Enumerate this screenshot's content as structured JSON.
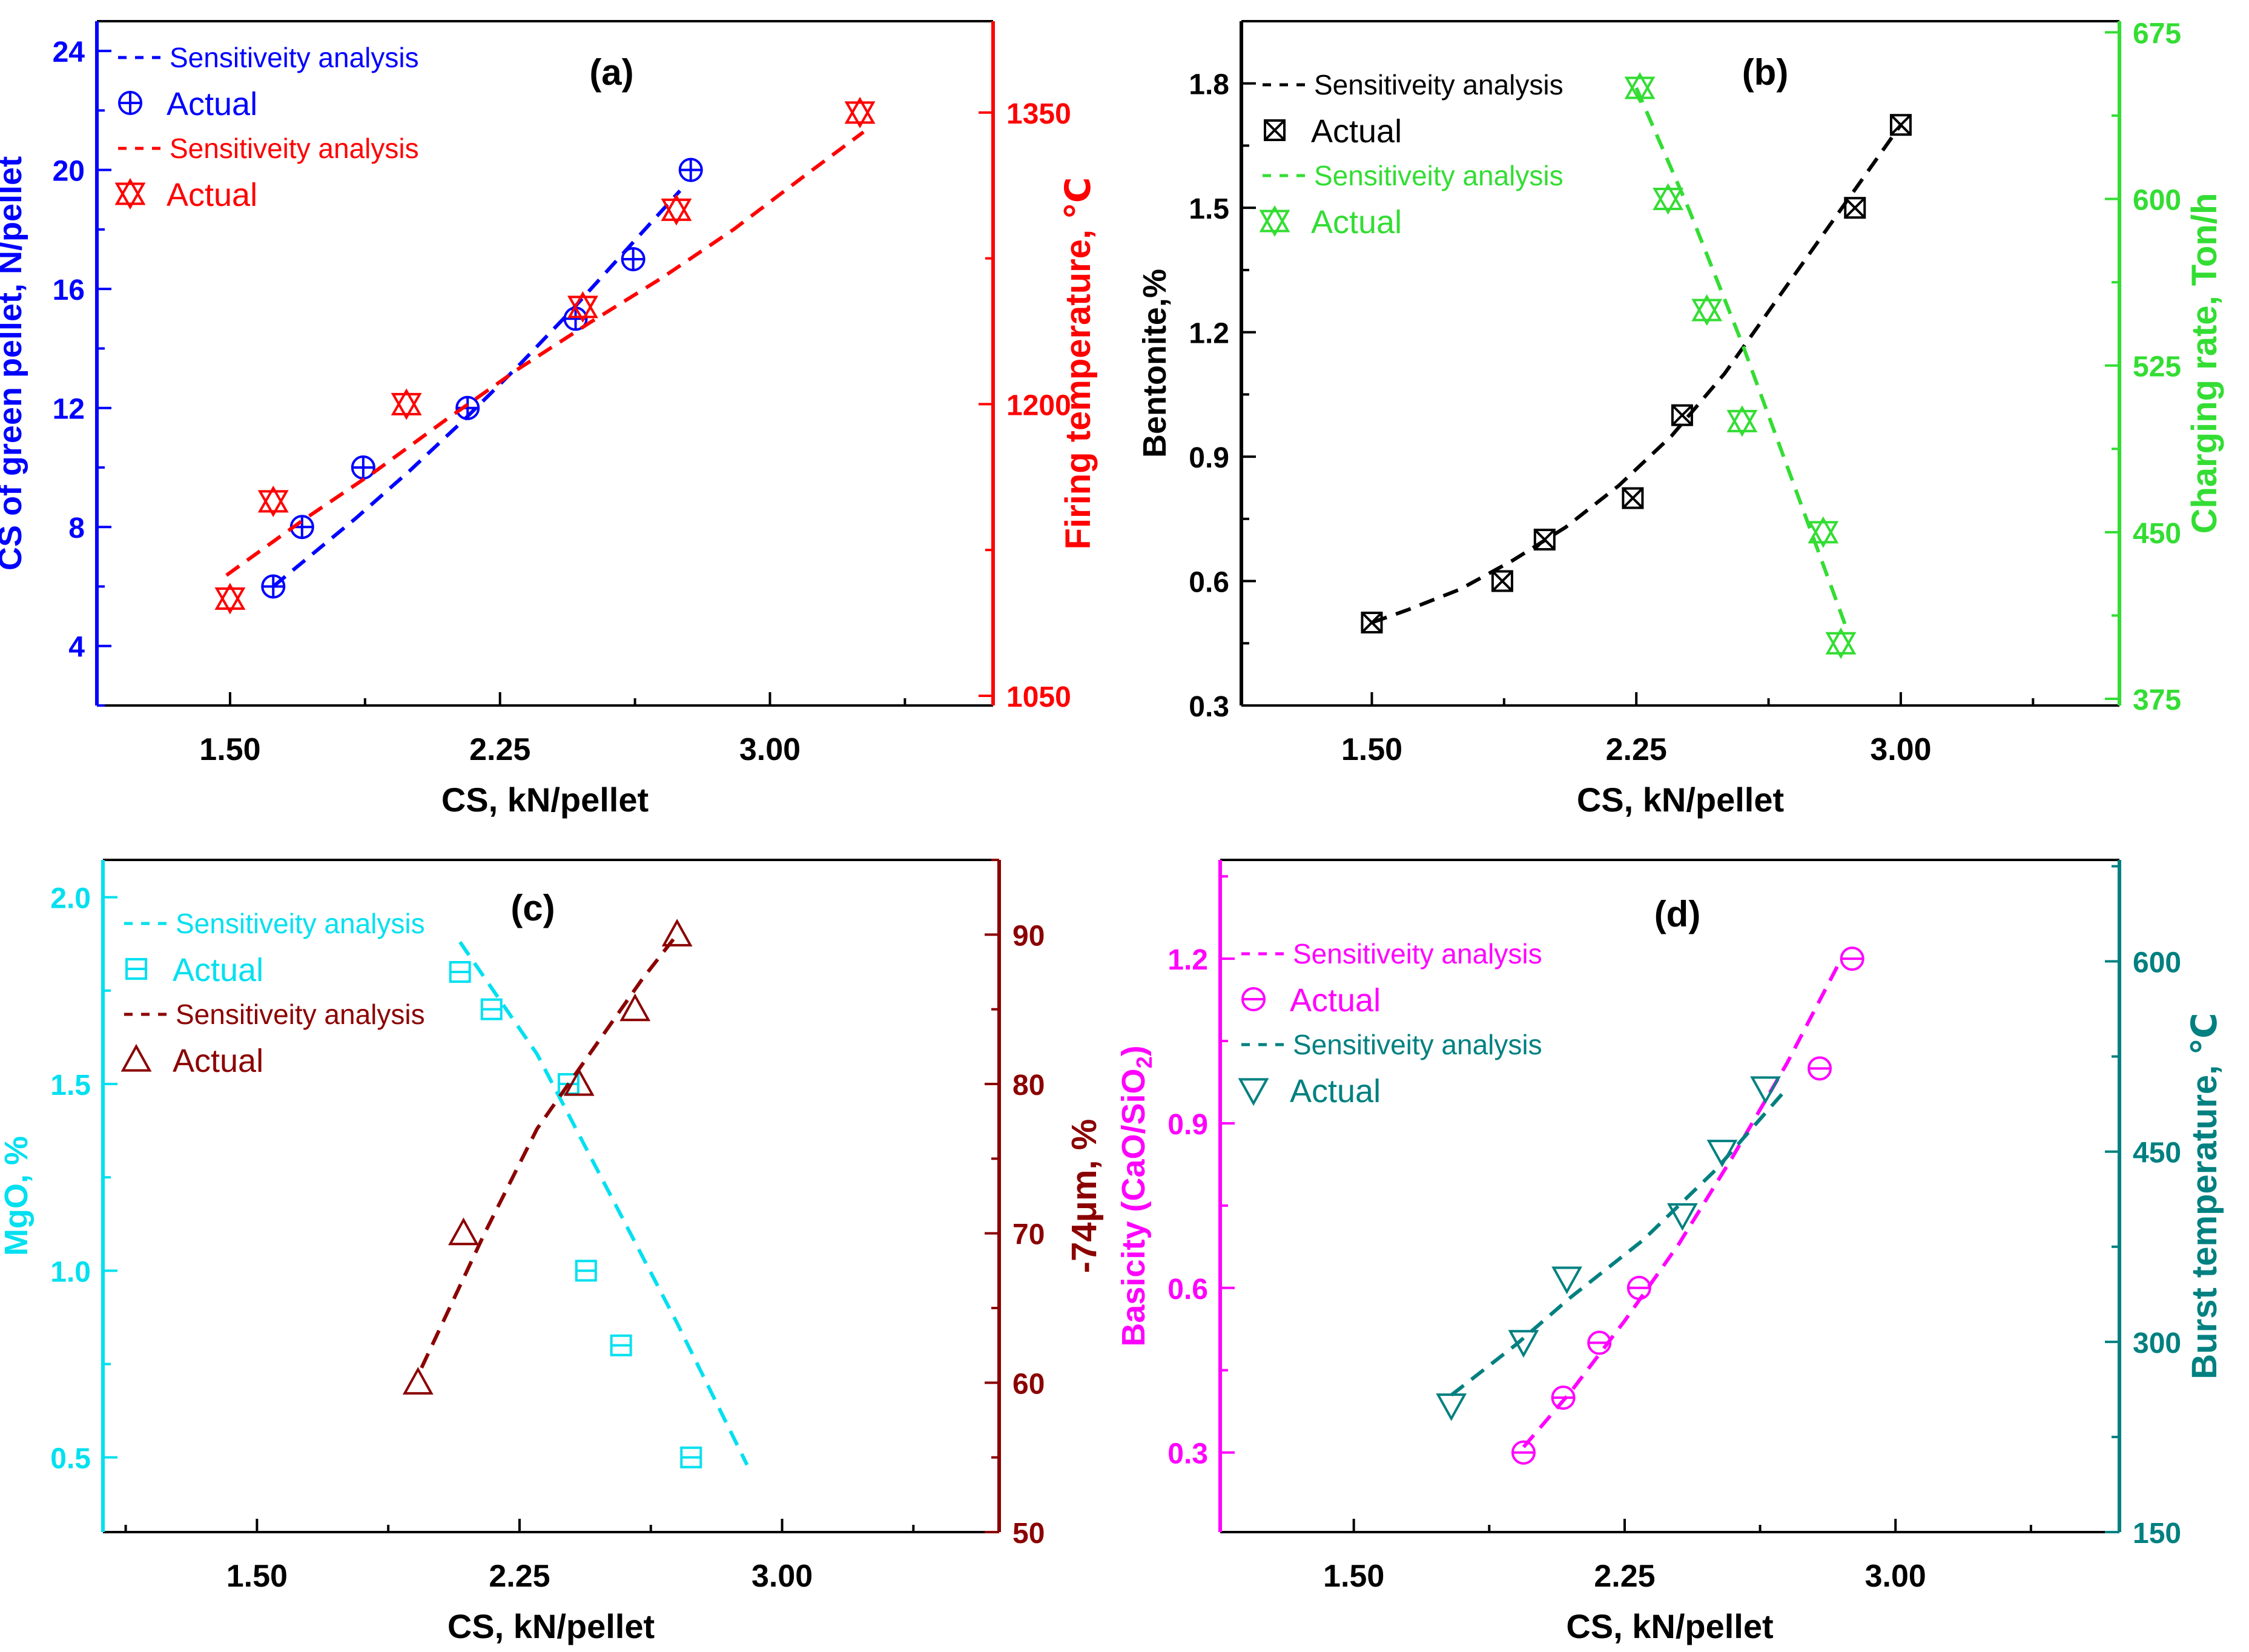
{
  "chart_data": [
    {
      "type": "scatter",
      "panel_label": "(a)",
      "xlabel": "CS, kN/pellet",
      "xticks": [
        "1.50",
        "2.25",
        "3.00"
      ],
      "xlim": [
        1.13,
        3.62
      ],
      "left_axis": {
        "label": "CS of green pellet, N/pellet",
        "color": "#0000ff",
        "lim": [
          2.0,
          25.0
        ],
        "ticks": [
          "4",
          "8",
          "12",
          "16",
          "20",
          "24"
        ],
        "tick_values": [
          4,
          8,
          12,
          16,
          20,
          24
        ],
        "minor_step": 2
      },
      "right_axis": {
        "label": "Firing temperature, ℃",
        "color": "#ff0000",
        "lim": [
          1045,
          1397
        ],
        "ticks": [
          "1050",
          "1200",
          "1350"
        ],
        "tick_values": [
          1050,
          1200,
          1350
        ],
        "minor_step": 75
      },
      "series": [
        {
          "name": "Sensitiveity analysis",
          "axis": "left",
          "kind": "line",
          "color": "#0000ff",
          "x": [
            1.62,
            1.72,
            1.85,
            2.0,
            2.15,
            2.3,
            2.45,
            2.6,
            2.75
          ],
          "y": [
            6.0,
            7.0,
            8.3,
            9.9,
            11.6,
            13.4,
            15.3,
            17.3,
            19.3
          ]
        },
        {
          "name": "Actual",
          "axis": "left",
          "kind": "points",
          "marker": "circle-plus",
          "color": "#0000ff",
          "x": [
            1.62,
            1.7,
            1.87,
            2.16,
            2.46,
            2.62,
            2.78
          ],
          "y": [
            6,
            8,
            10,
            12,
            15,
            17,
            20
          ]
        },
        {
          "name": "Sensitiveity analysis",
          "axis": "right",
          "kind": "line",
          "color": "#ff0000",
          "x": [
            1.49,
            1.7,
            1.9,
            2.1,
            2.3,
            2.5,
            2.7,
            2.9,
            3.1,
            3.26
          ],
          "y": [
            1112,
            1140,
            1165,
            1192,
            1218,
            1242,
            1265,
            1290,
            1318,
            1340
          ]
        },
        {
          "name": "Actual",
          "axis": "right",
          "kind": "points",
          "marker": "star-x",
          "color": "#ff0000",
          "x": [
            1.5,
            1.62,
            1.99,
            2.48,
            2.74,
            3.25
          ],
          "y": [
            1100,
            1150,
            1200,
            1250,
            1300,
            1350
          ]
        }
      ],
      "legend": [
        {
          "label": "Sensitiveity analysis",
          "kind": "line",
          "color": "#0000ff"
        },
        {
          "label": "Actual",
          "kind": "points",
          "marker": "circle-plus",
          "color": "#0000ff"
        },
        {
          "label": "Sensitiveity analysis",
          "kind": "line",
          "color": "#ff0000"
        },
        {
          "label": "Actual",
          "kind": "points",
          "marker": "star-x",
          "color": "#ff0000"
        }
      ]
    },
    {
      "type": "scatter",
      "panel_label": "(b)",
      "xlabel": "CS, kN/pellet",
      "xticks": [
        "1.50",
        "2.25",
        "3.00"
      ],
      "xlim": [
        1.13,
        3.62
      ],
      "left_axis": {
        "label": "Bentonite,%",
        "color": "#000000",
        "lim": [
          0.3,
          1.95
        ],
        "ticks": [
          "0.3",
          "0.6",
          "0.9",
          "1.2",
          "1.5",
          "1.8"
        ],
        "tick_values": [
          0.3,
          0.6,
          0.9,
          1.2,
          1.5,
          1.8
        ],
        "minor_step": 0.15
      },
      "right_axis": {
        "label": "Charging rate, Ton/h",
        "color": "#33dd33",
        "lim": [
          372,
          680
        ],
        "ticks": [
          "375",
          "450",
          "525",
          "600",
          "675"
        ],
        "tick_values": [
          375,
          450,
          525,
          600,
          675
        ],
        "minor_step": 37.5
      },
      "series": [
        {
          "name": "Sensitiveity analysis",
          "axis": "left",
          "kind": "line",
          "color": "#000000",
          "x": [
            1.5,
            1.6,
            1.75,
            1.9,
            2.05,
            2.2,
            2.35,
            2.5,
            2.65,
            2.8,
            3.0
          ],
          "y": [
            0.5,
            0.53,
            0.58,
            0.65,
            0.73,
            0.83,
            0.95,
            1.1,
            1.28,
            1.46,
            1.7
          ]
        },
        {
          "name": "Actual",
          "axis": "left",
          "kind": "points",
          "marker": "square-x",
          "color": "#000000",
          "x": [
            1.5,
            1.87,
            1.99,
            2.24,
            2.38,
            2.87,
            3.0
          ],
          "y": [
            0.5,
            0.6,
            0.7,
            0.8,
            1.0,
            1.5,
            1.7
          ]
        },
        {
          "name": "Sensitiveity analysis",
          "axis": "right",
          "kind": "line",
          "color": "#33dd33",
          "x": [
            2.25,
            2.4,
            2.55,
            2.7,
            2.85
          ],
          "y": [
            650,
            595,
            535,
            470,
            405
          ]
        },
        {
          "name": "Actual",
          "axis": "right",
          "kind": "points",
          "marker": "star-x",
          "color": "#33dd33",
          "x": [
            2.26,
            2.34,
            2.45,
            2.55,
            2.78,
            2.83
          ],
          "y": [
            650,
            600,
            550,
            500,
            450,
            400
          ]
        }
      ],
      "legend": [
        {
          "label": "Sensitiveity analysis",
          "kind": "line",
          "color": "#000000"
        },
        {
          "label": "Actual",
          "kind": "points",
          "marker": "square-x",
          "color": "#000000"
        },
        {
          "label": "Sensitiveity analysis",
          "kind": "line",
          "color": "#33dd33"
        },
        {
          "label": "Actual",
          "kind": "points",
          "marker": "star-x",
          "color": "#33dd33"
        }
      ]
    },
    {
      "type": "scatter",
      "panel_label": "(c)",
      "xlabel": "CS, kN/pellet",
      "xticks": [
        "1.50",
        "2.25",
        "3.00"
      ],
      "xlim": [
        1.06,
        3.62
      ],
      "left_axis": {
        "label": "MgO, %",
        "color": "#00e0f0",
        "lim": [
          0.3,
          2.1
        ],
        "ticks": [
          "0.5",
          "1.0",
          "1.5",
          "2.0"
        ],
        "tick_values": [
          0.5,
          1.0,
          1.5,
          2.0
        ],
        "minor_step": 0.25
      },
      "right_axis": {
        "label": "-74μm, %",
        "color": "#8b0000",
        "lim": [
          50,
          95
        ],
        "ticks": [
          "50",
          "60",
          "70",
          "80",
          "90"
        ],
        "tick_values": [
          50,
          60,
          70,
          80,
          90
        ],
        "minor_step": 5
      },
      "series": [
        {
          "name": "Sensitiveity analysis",
          "axis": "left",
          "kind": "line",
          "color": "#00e0f0",
          "x": [
            2.08,
            2.3,
            2.5,
            2.7,
            2.9
          ],
          "y": [
            1.88,
            1.58,
            1.22,
            0.86,
            0.48
          ]
        },
        {
          "name": "Actual",
          "axis": "left",
          "kind": "points",
          "marker": "square-minus",
          "color": "#00e0f0",
          "x": [
            2.08,
            2.17,
            2.39,
            2.44,
            2.54,
            2.74
          ],
          "y": [
            1.8,
            1.7,
            1.5,
            1.0,
            0.8,
            0.5
          ]
        },
        {
          "name": "Sensitiveity analysis",
          "axis": "right",
          "kind": "line",
          "color": "#8b0000",
          "x": [
            1.97,
            2.15,
            2.3,
            2.45,
            2.6,
            2.7
          ],
          "y": [
            61,
            70,
            77,
            82,
            87,
            90
          ]
        },
        {
          "name": "Actual",
          "axis": "right",
          "kind": "points",
          "marker": "triangle-up",
          "color": "#8b0000",
          "x": [
            1.96,
            2.09,
            2.42,
            2.58,
            2.7
          ],
          "y": [
            60,
            70,
            80,
            85,
            90
          ]
        }
      ],
      "legend": [
        {
          "label": "Sensitiveity analysis",
          "kind": "line",
          "color": "#00e0f0"
        },
        {
          "label": "Actual",
          "kind": "points",
          "marker": "square-minus",
          "color": "#00e0f0"
        },
        {
          "label": "Sensitiveity analysis",
          "kind": "line",
          "color": "#8b0000"
        },
        {
          "label": "Actual",
          "kind": "points",
          "marker": "triangle-up",
          "color": "#8b0000"
        }
      ]
    },
    {
      "type": "scatter",
      "panel_label": "(d)",
      "xlabel": "CS, kN/pellet",
      "xticks": [
        "1.50",
        "2.25",
        "3.00"
      ],
      "xlim": [
        1.13,
        3.62
      ],
      "left_axis": {
        "label": "Basicity (CaO/SiO₂)",
        "color": "#ff00ff",
        "lim": [
          0.155,
          1.38
        ],
        "ticks": [
          "0.3",
          "0.6",
          "0.9",
          "1.2"
        ],
        "tick_values": [
          0.3,
          0.6,
          0.9,
          1.2
        ],
        "minor_step": 0.15
      },
      "right_axis": {
        "label": "Burst temperature, ℃",
        "color": "#008080",
        "lim": [
          150,
          680
        ],
        "ticks": [
          "150",
          "300",
          "450",
          "600"
        ],
        "tick_values": [
          150,
          300,
          450,
          600
        ],
        "minor_step": 75
      },
      "series": [
        {
          "name": "Sensitiveity analysis",
          "axis": "left",
          "kind": "line",
          "color": "#ff00ff",
          "x": [
            1.97,
            2.1,
            2.25,
            2.4,
            2.55,
            2.7,
            2.85
          ],
          "y": [
            0.31,
            0.41,
            0.54,
            0.68,
            0.84,
            1.01,
            1.2
          ]
        },
        {
          "name": "Actual",
          "axis": "left",
          "kind": "points",
          "marker": "circle-minus",
          "color": "#ff00ff",
          "x": [
            1.97,
            2.08,
            2.18,
            2.29,
            2.79,
            2.88
          ],
          "y": [
            0.3,
            0.4,
            0.5,
            0.6,
            1.0,
            1.2
          ]
        },
        {
          "name": "Sensitiveity analysis",
          "axis": "right",
          "kind": "line",
          "color": "#008080",
          "x": [
            1.77,
            1.95,
            2.1,
            2.3,
            2.5,
            2.7
          ],
          "y": [
            258,
            298,
            335,
            380,
            435,
            500
          ]
        },
        {
          "name": "Actual",
          "axis": "right",
          "kind": "points",
          "marker": "triangle-down",
          "color": "#008080",
          "x": [
            1.77,
            1.97,
            2.09,
            2.41,
            2.52,
            2.64
          ],
          "y": [
            250,
            300,
            350,
            400,
            450,
            500
          ]
        }
      ],
      "legend": [
        {
          "label": "Sensitiveity analysis",
          "kind": "line",
          "color": "#ff00ff"
        },
        {
          "label": "Actual",
          "kind": "points",
          "marker": "circle-minus",
          "color": "#ff00ff"
        },
        {
          "label": "Sensitiveity analysis",
          "kind": "line",
          "color": "#008080"
        },
        {
          "label": "Actual",
          "kind": "points",
          "marker": "triangle-down",
          "color": "#008080"
        }
      ]
    }
  ]
}
